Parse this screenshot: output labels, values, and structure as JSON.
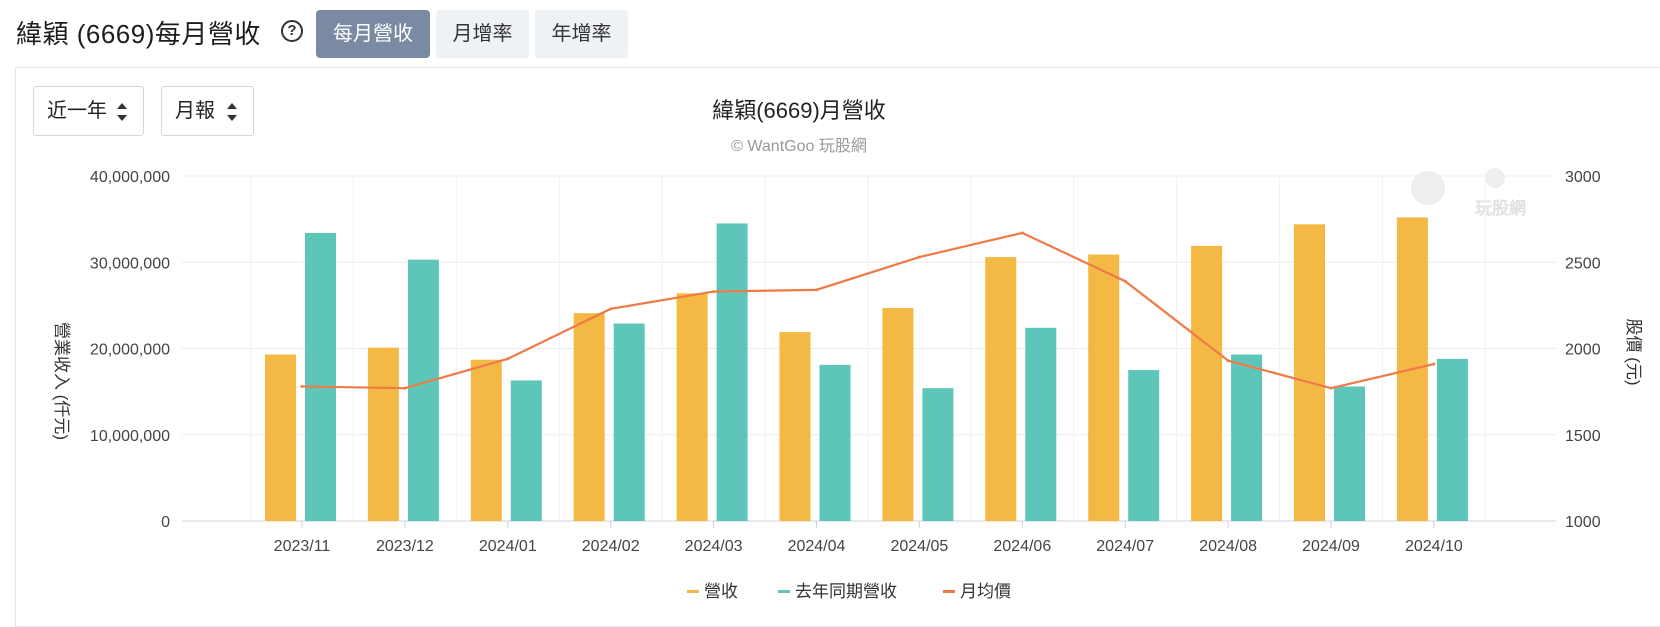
{
  "page": {
    "title": "緯穎 (6669)每月營收",
    "help_icon": "question-circle-icon",
    "tabs": [
      {
        "label": "每月營收",
        "active": true
      },
      {
        "label": "月增率",
        "active": false
      },
      {
        "label": "年增率",
        "active": false
      }
    ],
    "controls": {
      "range_select": "近一年",
      "period_select": "月報"
    }
  },
  "colors": {
    "revenue": "#f4b945",
    "last_year_revenue": "#5ec6b8",
    "avg_price": "#ee7b47"
  },
  "chart_data": {
    "type": "bar",
    "title": "緯穎(6669)月營收",
    "subtitle": "© WantGoo 玩股網",
    "watermark": "玩股網",
    "ylabel": "營業收入 (仟元)",
    "y2label": "股價 (元)",
    "ylim": [
      0,
      40000000
    ],
    "y2lim": [
      1000,
      3000
    ],
    "y_ticks": [
      "40,000,000",
      "30,000,000",
      "20,000,000",
      "10,000,000",
      "0"
    ],
    "y_tick_values": [
      40000000,
      30000000,
      20000000,
      10000000,
      0
    ],
    "y2_ticks": [
      "3000",
      "2500",
      "2000",
      "1500",
      "1000"
    ],
    "y2_tick_values": [
      3000,
      2500,
      2000,
      1500,
      1000
    ],
    "categories": [
      "2023/11",
      "2023/12",
      "2024/01",
      "2024/02",
      "2024/03",
      "2024/04",
      "2024/05",
      "2024/06",
      "2024/07",
      "2024/08",
      "2024/09",
      "2024/10"
    ],
    "series": [
      {
        "name": "營收",
        "type": "bar",
        "axis": "left",
        "values": [
          19300000,
          20100000,
          18700000,
          24100000,
          26400000,
          21900000,
          24700000,
          30600000,
          30900000,
          31900000,
          34400000,
          35200000
        ]
      },
      {
        "name": "去年同期營收",
        "type": "bar",
        "axis": "left",
        "values": [
          33400000,
          30300000,
          16300000,
          22900000,
          34500000,
          18100000,
          15400000,
          22400000,
          17500000,
          19300000,
          15600000,
          18800000
        ]
      },
      {
        "name": "月均價",
        "type": "line",
        "axis": "right",
        "values": [
          1780,
          1770,
          1940,
          2230,
          2330,
          2340,
          2530,
          2670,
          2390,
          1930,
          1770,
          1910
        ]
      }
    ],
    "legend": [
      "營收",
      "去年同期營收",
      "月均價"
    ],
    "legend_position": "bottom-center",
    "grid": true
  }
}
